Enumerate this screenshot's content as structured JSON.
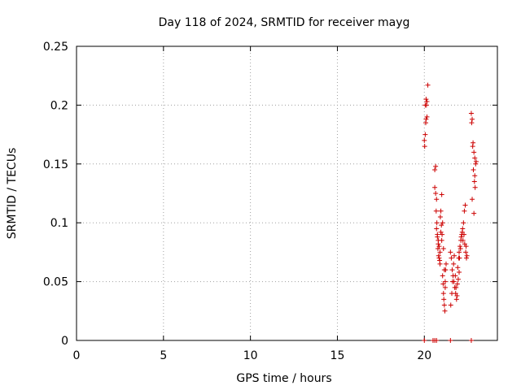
{
  "chart_data": {
    "type": "scatter",
    "title": "Day 118 of 2024, SRMTID for receiver mayg",
    "xlabel": "GPS time / hours",
    "ylabel": "SRMTID / TECUs",
    "xlim": [
      0,
      24.2
    ],
    "ylim": [
      0,
      0.25
    ],
    "x_ticks": [
      0,
      5,
      10,
      15,
      20
    ],
    "y_ticks": [
      0,
      0.05,
      0.1,
      0.15,
      0.2,
      0.25
    ],
    "x_tick_labels": [
      "0",
      "5",
      "10",
      "15",
      "20"
    ],
    "y_tick_labels": [
      "0",
      "0.05",
      "0.1",
      "0.15",
      "0.2",
      "0.25"
    ],
    "grid": true,
    "marker": "plus",
    "color": "#cc0000",
    "series": [
      {
        "x": [
          20.0,
          20.05,
          20.1,
          20.15,
          20.2,
          20.02,
          20.08,
          20.12,
          20.05,
          20.1,
          20.15,
          20.6,
          20.65,
          20.7,
          20.6,
          20.65,
          20.68,
          20.72,
          20.75,
          20.8,
          20.85,
          20.9,
          20.95,
          21.0,
          21.05,
          21.1,
          21.15,
          21.2,
          20.7,
          20.75,
          20.8,
          20.85,
          20.9,
          20.95,
          21.0,
          20.78,
          20.82,
          20.88,
          20.92,
          20.98,
          21.02,
          21.05,
          21.08,
          21.1,
          21.12,
          21.15,
          21.18,
          21.2,
          21.22,
          21.25,
          21.5,
          21.55,
          21.6,
          21.65,
          21.7,
          21.75,
          21.8,
          21.85,
          21.9,
          21.95,
          22.0,
          21.52,
          21.58,
          21.62,
          21.68,
          21.72,
          21.78,
          21.82,
          21.88,
          21.92,
          21.98,
          22.0,
          22.05,
          22.1,
          22.15,
          22.2,
          22.25,
          22.3,
          22.35,
          22.4,
          22.02,
          22.08,
          22.12,
          22.18,
          22.22,
          22.28,
          22.32,
          22.38,
          22.42,
          22.45,
          22.7,
          22.75,
          22.8,
          22.85,
          22.9,
          22.95,
          22.72,
          22.78,
          22.82,
          22.88,
          22.92,
          22.98,
          22.75,
          22.85,
          22.9,
          20.0,
          20.5,
          20.6,
          20.7,
          21.5,
          22.7
        ],
        "y": [
          0.17,
          0.2,
          0.205,
          0.19,
          0.217,
          0.165,
          0.185,
          0.2,
          0.175,
          0.188,
          0.203,
          0.13,
          0.125,
          0.12,
          0.145,
          0.148,
          0.11,
          0.1,
          0.09,
          0.085,
          0.08,
          0.075,
          0.11,
          0.124,
          0.1,
          0.078,
          0.06,
          0.05,
          0.095,
          0.088,
          0.082,
          0.07,
          0.065,
          0.092,
          0.085,
          0.078,
          0.072,
          0.068,
          0.105,
          0.098,
          0.09,
          0.055,
          0.048,
          0.04,
          0.035,
          0.03,
          0.025,
          0.045,
          0.06,
          0.065,
          0.075,
          0.07,
          0.06,
          0.055,
          0.05,
          0.045,
          0.04,
          0.035,
          0.048,
          0.052,
          0.058,
          0.03,
          0.04,
          0.05,
          0.065,
          0.072,
          0.055,
          0.045,
          0.038,
          0.062,
          0.07,
          0.075,
          0.08,
          0.085,
          0.09,
          0.095,
          0.1,
          0.11,
          0.115,
          0.08,
          0.07,
          0.078,
          0.088,
          0.092,
          0.085,
          0.09,
          0.082,
          0.075,
          0.07,
          0.072,
          0.193,
          0.188,
          0.168,
          0.16,
          0.155,
          0.15,
          0.185,
          0.165,
          0.145,
          0.135,
          0.13,
          0.152,
          0.12,
          0.108,
          0.14,
          0.0,
          0.0,
          0.0,
          0.0,
          0.0,
          0.0
        ]
      }
    ]
  }
}
